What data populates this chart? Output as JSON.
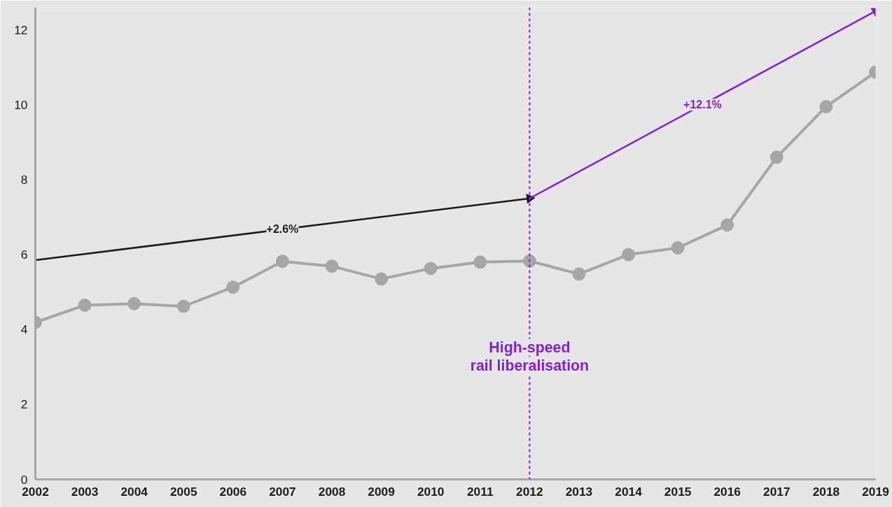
{
  "chart_data": {
    "type": "line",
    "x": [
      2002,
      2003,
      2004,
      2005,
      2006,
      2007,
      2008,
      2009,
      2010,
      2011,
      2012,
      2013,
      2014,
      2015,
      2016,
      2017,
      2018,
      2019
    ],
    "series": [
      {
        "color": "#a6a6a6",
        "values": [
          4.19,
          4.65,
          4.69,
          4.62,
          5.13,
          5.82,
          5.69,
          5.35,
          5.63,
          5.8,
          5.83,
          5.48,
          6.0,
          6.18,
          6.79,
          8.6,
          9.95,
          10.87
        ],
        "marker": "circle"
      },
      {
        "type": "line",
        "x": [
          2002,
          2012
        ],
        "values": [
          5.85,
          7.5
        ],
        "color": "#1a1a1a",
        "marker": "triangle"
      },
      {
        "type": "line",
        "x": [
          2012,
          2019
        ],
        "values": [
          7.5,
          12.5
        ],
        "color": "#7f1fe0",
        "marker": "triangle"
      }
    ],
    "xlim": [
      2002,
      2019
    ],
    "xticks": [
      2002,
      2003,
      2004,
      2005,
      2006,
      2007,
      2008,
      2009,
      2010,
      2011,
      2012,
      2013,
      2014,
      2015,
      2016,
      2017,
      2018,
      2019
    ],
    "ylim": [
      0,
      12.6
    ],
    "yticks": [
      0,
      2,
      4,
      6,
      8,
      10,
      12
    ],
    "ref_lines": [
      {
        "axis": "x",
        "value": 2012,
        "label": "High-speed rail liberalisation",
        "color": "#7f1fe0",
        "line_style": "dashed"
      }
    ],
    "annotations": [
      "+2.6%",
      "+12.1%"
    ]
  }
}
